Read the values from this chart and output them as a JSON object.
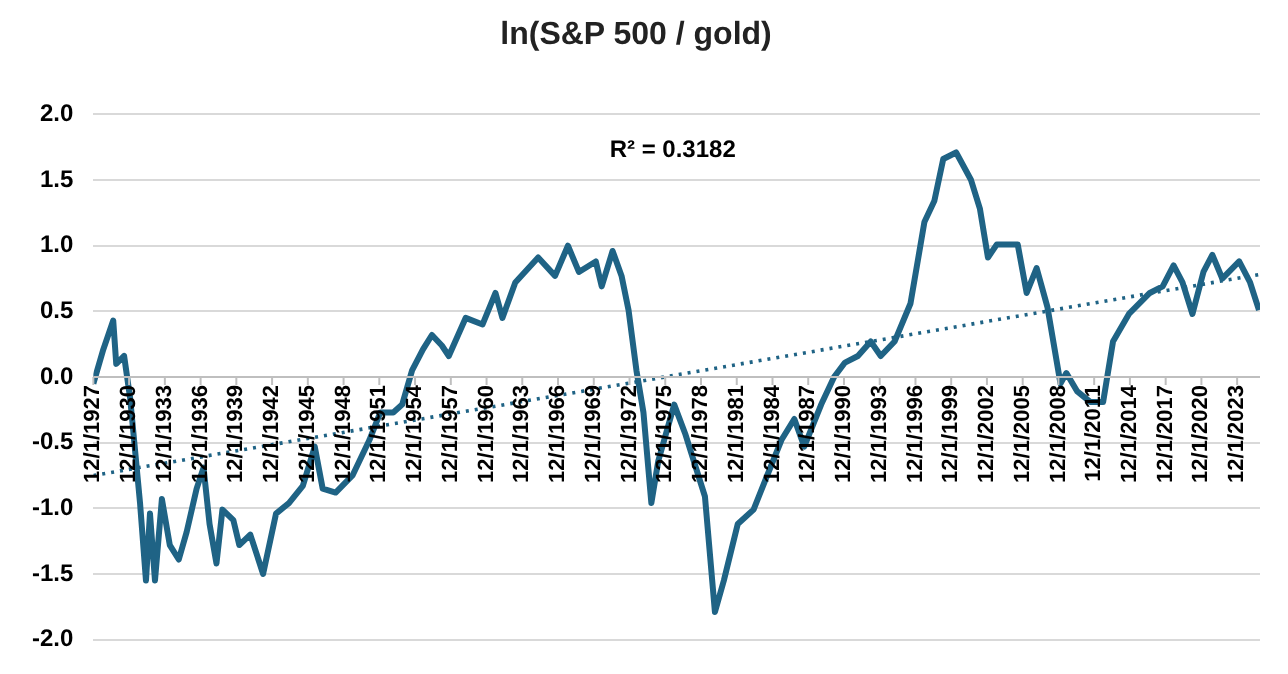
{
  "chart_data": {
    "type": "line",
    "title": "ln(S&P 500 / gold)",
    "annotations": [
      "R² = 0.3182"
    ],
    "xlim": [
      "1927-12",
      "2025-11"
    ],
    "xticks": [
      {
        "value": "1927-12-01",
        "label": "12/1/1927"
      },
      {
        "value": "1930-12-01",
        "label": "12/1/1930"
      },
      {
        "value": "1933-12-01",
        "label": "12/1/1933"
      },
      {
        "value": "1936-12-01",
        "label": "12/1/1936"
      },
      {
        "value": "1939-12-01",
        "label": "12/1/1939"
      },
      {
        "value": "1942-12-01",
        "label": "12/1/1942"
      },
      {
        "value": "1945-12-01",
        "label": "12/1/1945"
      },
      {
        "value": "1948-12-01",
        "label": "12/1/1948"
      },
      {
        "value": "1951-12-01",
        "label": "12/1/1951"
      },
      {
        "value": "1954-12-01",
        "label": "12/1/1954"
      },
      {
        "value": "1957-12-01",
        "label": "12/1/1957"
      },
      {
        "value": "1960-12-01",
        "label": "12/1/1960"
      },
      {
        "value": "1963-12-01",
        "label": "12/1/1963"
      },
      {
        "value": "1966-12-01",
        "label": "12/1/1966"
      },
      {
        "value": "1969-12-01",
        "label": "12/1/1969"
      },
      {
        "value": "1972-12-01",
        "label": "12/1/1972"
      },
      {
        "value": "1975-12-01",
        "label": "12/1/1975"
      },
      {
        "value": "1978-12-01",
        "label": "12/1/1978"
      },
      {
        "value": "1981-12-01",
        "label": "12/1/1981"
      },
      {
        "value": "1984-12-01",
        "label": "12/1/1984"
      },
      {
        "value": "1987-12-01",
        "label": "12/1/1987"
      },
      {
        "value": "1990-12-01",
        "label": "12/1/1990"
      },
      {
        "value": "1993-12-01",
        "label": "12/1/1993"
      },
      {
        "value": "1996-12-01",
        "label": "12/1/1996"
      },
      {
        "value": "1999-12-01",
        "label": "12/1/1999"
      },
      {
        "value": "2002-12-01",
        "label": "12/1/2002"
      },
      {
        "value": "2005-12-01",
        "label": "12/1/2005"
      },
      {
        "value": "2008-12-01",
        "label": "12/1/2008"
      },
      {
        "value": "2011-12-01",
        "label": "12/1/2011"
      },
      {
        "value": "2014-12-01",
        "label": "12/1/2014"
      },
      {
        "value": "2017-12-01",
        "label": "12/1/2017"
      },
      {
        "value": "2020-12-01",
        "label": "12/1/2020"
      },
      {
        "value": "2023-12-01",
        "label": "12/1/2023"
      }
    ],
    "ylim": [
      -2,
      2
    ],
    "yticks": [
      {
        "value": -2,
        "label": "-2.0"
      },
      {
        "value": -1.5,
        "label": "-1.5"
      },
      {
        "value": -1,
        "label": "-1.0"
      },
      {
        "value": -0.5,
        "label": "-0.5"
      },
      {
        "value": 0,
        "label": "0.0"
      },
      {
        "value": 0.5,
        "label": "0.5"
      },
      {
        "value": 1,
        "label": "1.0"
      },
      {
        "value": 1.5,
        "label": "1.5"
      },
      {
        "value": 2,
        "label": "2.0"
      }
    ],
    "grid": "y",
    "legend": false,
    "marker": "none",
    "series": [
      {
        "color": "#1f6385",
        "line_style": "solid",
        "x": [
          "1927-12",
          "1928-10",
          "1929-08",
          "1929-11",
          "1930-07",
          "1931-01",
          "1931-11",
          "1932-05",
          "1932-09",
          "1933-02",
          "1933-09",
          "1934-05",
          "1935-02",
          "1935-10",
          "1936-08",
          "1937-03",
          "1937-09",
          "1938-04",
          "1938-10",
          "1939-09",
          "1940-03",
          "1941-02",
          "1942-03",
          "1943-04",
          "1944-05",
          "1945-07",
          "1946-07",
          "1947-03",
          "1948-04",
          "1949-09",
          "1951-02",
          "1952-01",
          "1953-02",
          "1953-11",
          "1954-09",
          "1955-08",
          "1956-05",
          "1957-03",
          "1957-10",
          "1959-03",
          "1960-08",
          "1961-09",
          "1962-04",
          "1963-05",
          "1965-04",
          "1966-09",
          "1967-10",
          "1968-09",
          "1970-02",
          "1970-08",
          "1971-07",
          "1972-04",
          "1972-11",
          "1973-07",
          "1974-02",
          "1974-10",
          "1975-05",
          "1976-09",
          "1977-08",
          "1979-04",
          "1980-02",
          "1980-11",
          "1982-01",
          "1983-05",
          "1984-04",
          "1985-09",
          "1986-10",
          "1987-08",
          "1989-01",
          "1990-02",
          "1991-01",
          "1992-02",
          "1993-03",
          "1994-01",
          "1995-03",
          "1996-07",
          "1997-09",
          "1998-07",
          "1999-04",
          "2000-05",
          "2001-08",
          "2002-05",
          "2003-01",
          "2003-10",
          "2005-07",
          "2006-04",
          "2007-02",
          "2008-01",
          "2009-02",
          "2009-08",
          "2010-07",
          "2011-08",
          "2012-09",
          "2013-07",
          "2014-11",
          "2016-08",
          "2017-09",
          "2018-08",
          "2019-05",
          "2020-03",
          "2021-02",
          "2021-11",
          "2022-09",
          "2024-02",
          "2025-01",
          "2025-10"
        ],
        "values": [
          -0.05,
          0.21,
          0.43,
          0.1,
          0.16,
          -0.16,
          -0.96,
          -1.55,
          -1.04,
          -1.55,
          -0.93,
          -1.28,
          -1.39,
          -1.18,
          -0.85,
          -0.69,
          -1.12,
          -1.42,
          -1.01,
          -1.09,
          -1.28,
          -1.2,
          -1.5,
          -1.04,
          -0.96,
          -0.83,
          -0.53,
          -0.85,
          -0.88,
          -0.75,
          -0.48,
          -0.27,
          -0.27,
          -0.21,
          0.05,
          0.21,
          0.32,
          0.24,
          0.16,
          0.45,
          0.4,
          0.64,
          0.45,
          0.72,
          0.91,
          0.77,
          1.0,
          0.8,
          0.88,
          0.69,
          0.96,
          0.77,
          0.51,
          0.05,
          -0.27,
          -0.96,
          -0.64,
          -0.21,
          -0.43,
          -0.91,
          -1.79,
          -1.55,
          -1.12,
          -1.01,
          -0.8,
          -0.48,
          -0.32,
          -0.53,
          -0.21,
          0.0,
          0.11,
          0.16,
          0.27,
          0.16,
          0.27,
          0.56,
          1.18,
          1.34,
          1.66,
          1.71,
          1.5,
          1.28,
          0.91,
          1.01,
          1.01,
          0.64,
          0.83,
          0.53,
          -0.05,
          0.03,
          -0.11,
          -0.19,
          -0.19,
          0.27,
          0.48,
          0.64,
          0.69,
          0.85,
          0.72,
          0.48,
          0.8,
          0.93,
          0.75,
          0.88,
          0.72,
          0.51
        ]
      },
      {
        "type": "line",
        "color": "#1f6385",
        "line_style": "dotted",
        "x": [
          "1927-12",
          "2025-10"
        ],
        "values": [
          -0.75,
          0.78
        ]
      }
    ]
  }
}
